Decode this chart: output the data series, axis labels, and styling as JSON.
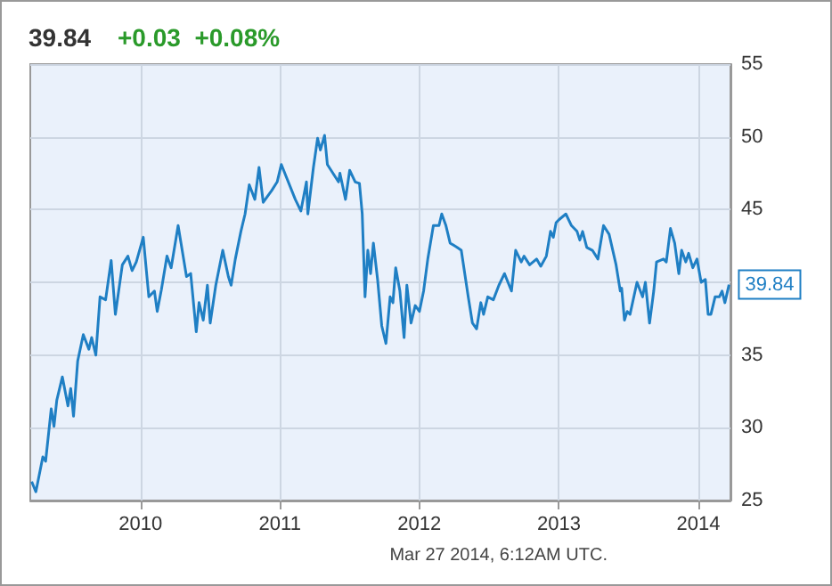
{
  "chart_data": {
    "type": "line",
    "title": "39.84",
    "subtitle": "+0.03  +0.08%",
    "annotations": [
      "Mar 27 2014, 6:12AM UTC."
    ],
    "x": [
      2009.22,
      2009.25,
      2009.3,
      2009.32,
      2009.36,
      2009.38,
      2009.4,
      2009.44,
      2009.48,
      2009.5,
      2009.52,
      2009.55,
      2009.59,
      2009.63,
      2009.65,
      2009.68,
      2009.71,
      2009.75,
      2009.79,
      2009.82,
      2009.87,
      2009.91,
      2009.94,
      2009.97,
      2010.02,
      2010.06,
      2010.1,
      2010.12,
      2010.15,
      2010.19,
      2010.22,
      2010.27,
      2010.33,
      2010.36,
      2010.4,
      2010.42,
      2010.45,
      2010.48,
      2010.5,
      2010.54,
      2010.59,
      2010.63,
      2010.65,
      2010.68,
      2010.72,
      2010.75,
      2010.78,
      2010.82,
      2010.85,
      2010.88,
      2010.94,
      2010.98,
      2011.01,
      2011.11,
      2011.15,
      2011.19,
      2011.2,
      2011.24,
      2011.27,
      2011.29,
      2011.32,
      2011.34,
      2011.38,
      2011.42,
      2011.43,
      2011.47,
      2011.5,
      2011.54,
      2011.57,
      2011.59,
      2011.61,
      2011.63,
      2011.65,
      2011.67,
      2011.7,
      2011.73,
      2011.76,
      2011.79,
      2011.81,
      2011.83,
      2011.86,
      2011.89,
      2011.91,
      2011.94,
      2011.97,
      2012.0,
      2012.03,
      2012.06,
      2012.1,
      2012.14,
      2012.16,
      2012.19,
      2012.22,
      2012.27,
      2012.3,
      2012.35,
      2012.38,
      2012.41,
      2012.44,
      2012.46,
      2012.49,
      2012.53,
      2012.57,
      2012.61,
      2012.66,
      2012.69,
      2012.73,
      2012.75,
      2012.79,
      2012.84,
      2012.87,
      2012.91,
      2012.94,
      2012.96,
      2012.98,
      2013.0,
      2013.05,
      2013.09,
      2013.13,
      2013.15,
      2013.17,
      2013.2,
      2013.24,
      2013.28,
      2013.32,
      2013.36,
      2013.41,
      2013.44,
      2013.45,
      2013.47,
      2013.49,
      2013.51,
      2013.56,
      2013.6,
      2013.62,
      2013.65,
      2013.68,
      2013.7,
      2013.75,
      2013.77,
      2013.8,
      2013.83,
      2013.86,
      2013.88,
      2013.91,
      2013.93,
      2013.96,
      2013.99,
      2014.02,
      2014.05,
      2014.07,
      2014.09,
      2014.12,
      2014.15,
      2014.17,
      2014.19,
      2014.22
    ],
    "series": [
      {
        "color": "#1f7fc4",
        "values": [
          26.3,
          25.6,
          28.0,
          27.7,
          31.3,
          30.1,
          31.9,
          33.5,
          31.5,
          32.7,
          30.8,
          34.6,
          36.4,
          35.4,
          36.2,
          35.0,
          39.0,
          38.8,
          41.5,
          37.8,
          41.2,
          41.8,
          40.8,
          41.4,
          43.1,
          39.0,
          39.4,
          38.0,
          39.5,
          41.8,
          41.0,
          43.9,
          40.4,
          40.6,
          36.6,
          38.6,
          37.4,
          39.8,
          37.2,
          39.8,
          42.2,
          40.4,
          39.8,
          41.6,
          43.5,
          44.7,
          46.7,
          45.7,
          47.9,
          45.5,
          46.3,
          46.9,
          48.1,
          45.7,
          44.9,
          46.9,
          44.7,
          47.9,
          49.9,
          49.1,
          50.1,
          48.1,
          47.5,
          46.9,
          47.5,
          45.7,
          47.7,
          46.9,
          46.8,
          44.7,
          39.0,
          42.2,
          40.6,
          42.7,
          40.2,
          37.0,
          35.8,
          39.0,
          38.6,
          41.0,
          39.4,
          36.2,
          39.8,
          37.2,
          38.4,
          38.0,
          39.4,
          41.6,
          43.9,
          43.9,
          44.7,
          43.9,
          42.7,
          42.4,
          42.2,
          39.0,
          37.2,
          36.8,
          38.6,
          37.8,
          39.0,
          38.8,
          39.8,
          40.6,
          39.4,
          42.2,
          41.4,
          41.8,
          41.2,
          41.6,
          41.1,
          41.8,
          43.5,
          43.1,
          44.1,
          44.3,
          44.7,
          43.9,
          43.5,
          42.9,
          43.5,
          42.4,
          42.2,
          41.6,
          43.9,
          43.3,
          41.2,
          39.4,
          39.6,
          37.4,
          38.0,
          37.8,
          40.0,
          39.0,
          40.0,
          37.2,
          39.4,
          41.4,
          41.6,
          41.4,
          43.7,
          42.7,
          40.6,
          42.2,
          41.4,
          42.0,
          41.0,
          41.6,
          40.0,
          40.2,
          37.8,
          37.8,
          39.0,
          39.0,
          39.4,
          38.6,
          39.84
        ],
        "value_labels": [
          null,
          null,
          null,
          null,
          null,
          null,
          null,
          null,
          null,
          null,
          null,
          null,
          null,
          null,
          null,
          null,
          null,
          null,
          null,
          null,
          null,
          null,
          null,
          null,
          null,
          null,
          null,
          null,
          null,
          null,
          null,
          null,
          null,
          null,
          null,
          null,
          null,
          null,
          null,
          null,
          null,
          null,
          null,
          null,
          null,
          null,
          null,
          null,
          null,
          null,
          null,
          null,
          null,
          null,
          null,
          null,
          null,
          null,
          null,
          null,
          null,
          null,
          null,
          null,
          null,
          null,
          null,
          null,
          null,
          null,
          null,
          null,
          null,
          null,
          null,
          null,
          null,
          null,
          null,
          null,
          null,
          null,
          null,
          null,
          null,
          null,
          null,
          null,
          null,
          null,
          null,
          null,
          null,
          null,
          null,
          null,
          null,
          null,
          null,
          null,
          null,
          null,
          null,
          null,
          null,
          null,
          null,
          null,
          null,
          null,
          null,
          null,
          null,
          null,
          null,
          null,
          null,
          null,
          null,
          null,
          null,
          null,
          null,
          null,
          null,
          null,
          null,
          null,
          null,
          null,
          null,
          null,
          null,
          null,
          null,
          null,
          null,
          null,
          null,
          null,
          null,
          null,
          null,
          null,
          null,
          null,
          null,
          null,
          null,
          null,
          null,
          null,
          null,
          null,
          null,
          null,
          "39.84"
        ]
      }
    ],
    "xlim": [
      2009.21,
      2014.23
    ],
    "xticks": [
      2010,
      2011,
      2012,
      2013,
      2014
    ],
    "ylim": [
      25,
      55
    ],
    "yticks": [
      25,
      30,
      35,
      {
        "value": 40,
        "label": null
      },
      45,
      50,
      55
    ],
    "grid": true
  }
}
